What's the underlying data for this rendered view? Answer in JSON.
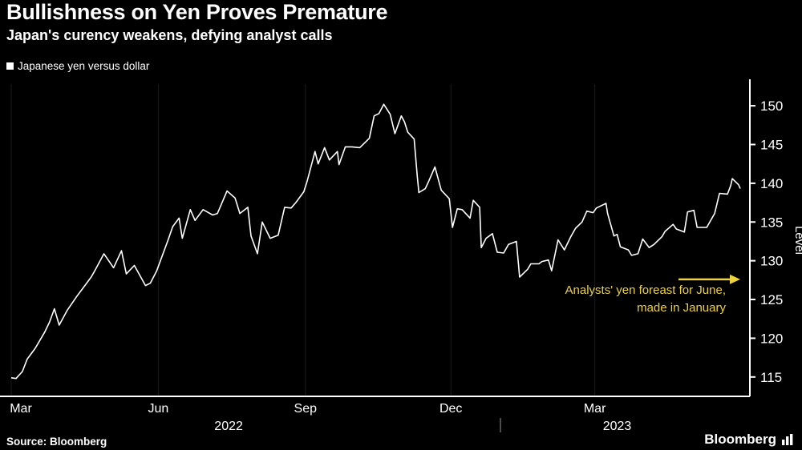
{
  "header": {
    "title": "Bullishness on Yen Proves Premature",
    "subtitle": "Japan's curency weakens, defying analyst calls"
  },
  "legend": {
    "label": "Japanese yen versus dollar",
    "swatch_color": "#ffffff"
  },
  "footer": {
    "source": "Source: Bloomberg",
    "brand": "Bloomberg"
  },
  "colors": {
    "background": "#000000",
    "line": "#ffffff",
    "axis": "#ffffff",
    "grid": "#1b1b1b",
    "annotation": "#edd23e",
    "year_divider": "#999999"
  },
  "chart_data": {
    "type": "line",
    "title": "Bullishness on Yen Proves Premature",
    "subtitle": "Japan's curency weakens, defying analyst calls",
    "series_name": "Japanese yen versus dollar",
    "ylabel": "Level",
    "ylim": [
      112.5,
      152.8
    ],
    "y_ticks": [
      115,
      120,
      125,
      130,
      135,
      140,
      145,
      150
    ],
    "x_domain": [
      "2022-02-26",
      "2023-06-06"
    ],
    "x_ticks": [
      {
        "label": "Mar",
        "date": "2022-03-01"
      },
      {
        "label": "Jun",
        "date": "2022-06-01"
      },
      {
        "label": "Sep",
        "date": "2022-09-01"
      },
      {
        "label": "Dec",
        "date": "2022-12-01"
      },
      {
        "label": "Mar",
        "date": "2023-03-01"
      }
    ],
    "year_labels": [
      {
        "label": "2022",
        "center_date": "2022-07-15"
      },
      {
        "label": "2023",
        "center_date": "2023-03-15"
      }
    ],
    "year_divider_date": "2023-01-01",
    "annotation": {
      "lines": [
        "Analysts' yen foreast for June,",
        "made in January"
      ],
      "arrow_level": 127.6
    },
    "points": [
      [
        "2022-03-01",
        114.9
      ],
      [
        "2022-03-04",
        114.8
      ],
      [
        "2022-03-08",
        115.7
      ],
      [
        "2022-03-11",
        117.3
      ],
      [
        "2022-03-16",
        118.7
      ],
      [
        "2022-03-22",
        120.8
      ],
      [
        "2022-03-25",
        122.1
      ],
      [
        "2022-03-28",
        123.8
      ],
      [
        "2022-03-31",
        121.7
      ],
      [
        "2022-04-05",
        123.6
      ],
      [
        "2022-04-11",
        125.4
      ],
      [
        "2022-04-15",
        126.5
      ],
      [
        "2022-04-20",
        127.9
      ],
      [
        "2022-04-22",
        128.6
      ],
      [
        "2022-04-28",
        130.9
      ],
      [
        "2022-05-04",
        129.1
      ],
      [
        "2022-05-09",
        131.3
      ],
      [
        "2022-05-12",
        128.3
      ],
      [
        "2022-05-17",
        129.4
      ],
      [
        "2022-05-24",
        126.8
      ],
      [
        "2022-05-27",
        127.1
      ],
      [
        "2022-05-31",
        128.7
      ],
      [
        "2022-06-07",
        132.6
      ],
      [
        "2022-06-10",
        134.4
      ],
      [
        "2022-06-14",
        135.5
      ],
      [
        "2022-06-16",
        132.9
      ],
      [
        "2022-06-21",
        136.6
      ],
      [
        "2022-06-24",
        135.2
      ],
      [
        "2022-06-29",
        136.6
      ],
      [
        "2022-07-05",
        135.9
      ],
      [
        "2022-07-08",
        136.1
      ],
      [
        "2022-07-14",
        139.0
      ],
      [
        "2022-07-19",
        138.1
      ],
      [
        "2022-07-22",
        136.1
      ],
      [
        "2022-07-27",
        136.9
      ],
      [
        "2022-07-29",
        133.2
      ],
      [
        "2022-08-02",
        130.9
      ],
      [
        "2022-08-05",
        135.0
      ],
      [
        "2022-08-10",
        132.9
      ],
      [
        "2022-08-15",
        133.3
      ],
      [
        "2022-08-19",
        136.9
      ],
      [
        "2022-08-23",
        136.8
      ],
      [
        "2022-08-26",
        137.5
      ],
      [
        "2022-08-31",
        138.9
      ],
      [
        "2022-09-02",
        140.2
      ],
      [
        "2022-09-07",
        144.1
      ],
      [
        "2022-09-09",
        142.5
      ],
      [
        "2022-09-13",
        144.6
      ],
      [
        "2022-09-16",
        143.0
      ],
      [
        "2022-09-21",
        144.1
      ],
      [
        "2022-09-22",
        142.4
      ],
      [
        "2022-09-26",
        144.7
      ],
      [
        "2022-09-30",
        144.7
      ],
      [
        "2022-10-05",
        144.6
      ],
      [
        "2022-10-11",
        145.8
      ],
      [
        "2022-10-14",
        148.7
      ],
      [
        "2022-10-17",
        149.0
      ],
      [
        "2022-10-20",
        150.2
      ],
      [
        "2022-10-24",
        148.9
      ],
      [
        "2022-10-27",
        146.4
      ],
      [
        "2022-10-31",
        148.7
      ],
      [
        "2022-11-02",
        147.9
      ],
      [
        "2022-11-04",
        146.6
      ],
      [
        "2022-11-08",
        145.7
      ],
      [
        "2022-11-10",
        140.9
      ],
      [
        "2022-11-11",
        138.8
      ],
      [
        "2022-11-15",
        139.3
      ],
      [
        "2022-11-17",
        140.2
      ],
      [
        "2022-11-21",
        142.1
      ],
      [
        "2022-11-25",
        139.1
      ],
      [
        "2022-11-30",
        138.0
      ],
      [
        "2022-12-02",
        134.3
      ],
      [
        "2022-12-05",
        136.7
      ],
      [
        "2022-12-08",
        136.6
      ],
      [
        "2022-12-13",
        135.5
      ],
      [
        "2022-12-15",
        137.8
      ],
      [
        "2022-12-19",
        136.9
      ],
      [
        "2022-12-20",
        131.7
      ],
      [
        "2022-12-23",
        132.9
      ],
      [
        "2022-12-27",
        133.5
      ],
      [
        "2022-12-30",
        131.1
      ],
      [
        "2023-01-03",
        131.0
      ],
      [
        "2023-01-06",
        132.1
      ],
      [
        "2023-01-11",
        132.5
      ],
      [
        "2023-01-13",
        127.9
      ],
      [
        "2023-01-18",
        128.9
      ],
      [
        "2023-01-20",
        129.6
      ],
      [
        "2023-01-25",
        129.6
      ],
      [
        "2023-01-27",
        129.9
      ],
      [
        "2023-01-31",
        130.1
      ],
      [
        "2023-02-02",
        128.7
      ],
      [
        "2023-02-06",
        132.7
      ],
      [
        "2023-02-10",
        131.4
      ],
      [
        "2023-02-14",
        133.1
      ],
      [
        "2023-02-17",
        134.2
      ],
      [
        "2023-02-21",
        135.0
      ],
      [
        "2023-02-24",
        136.4
      ],
      [
        "2023-02-28",
        136.2
      ],
      [
        "2023-03-02",
        136.8
      ],
      [
        "2023-03-08",
        137.4
      ],
      [
        "2023-03-09",
        136.1
      ],
      [
        "2023-03-13",
        133.2
      ],
      [
        "2023-03-15",
        133.4
      ],
      [
        "2023-03-17",
        131.8
      ],
      [
        "2023-03-22",
        131.4
      ],
      [
        "2023-03-24",
        130.7
      ],
      [
        "2023-03-28",
        130.9
      ],
      [
        "2023-03-31",
        132.8
      ],
      [
        "2023-04-04",
        131.7
      ],
      [
        "2023-04-07",
        132.1
      ],
      [
        "2023-04-12",
        133.1
      ],
      [
        "2023-04-14",
        133.8
      ],
      [
        "2023-04-19",
        134.7
      ],
      [
        "2023-04-21",
        134.1
      ],
      [
        "2023-04-26",
        133.7
      ],
      [
        "2023-04-28",
        136.3
      ],
      [
        "2023-05-02",
        136.5
      ],
      [
        "2023-05-04",
        134.3
      ],
      [
        "2023-05-10",
        134.3
      ],
      [
        "2023-05-15",
        136.1
      ],
      [
        "2023-05-18",
        138.7
      ],
      [
        "2023-05-23",
        138.6
      ],
      [
        "2023-05-25",
        139.7
      ],
      [
        "2023-05-26",
        140.6
      ],
      [
        "2023-05-30",
        139.8
      ],
      [
        "2023-05-31",
        139.3
      ]
    ]
  }
}
